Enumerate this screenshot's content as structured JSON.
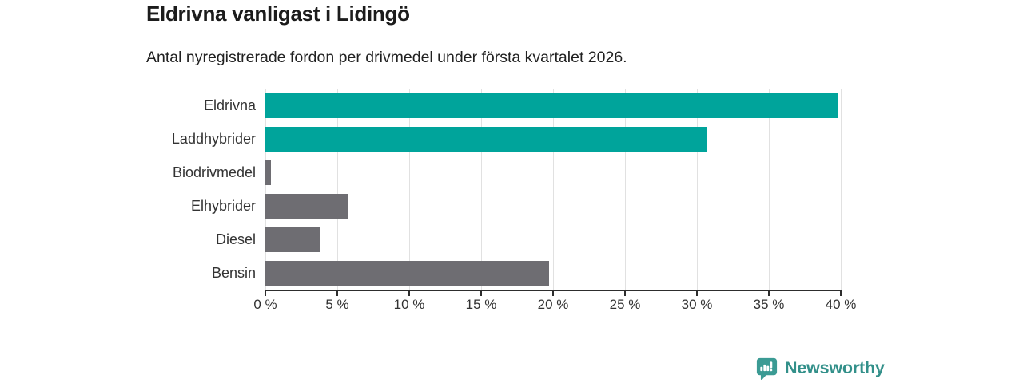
{
  "header": {
    "title": "Eldrivna vanligast i Lidingö",
    "subtitle": "Antal nyregistrerade fordon per drivmedel under första kvartalet 2026."
  },
  "chart_data": {
    "type": "bar",
    "orientation": "horizontal",
    "title": "Eldrivna vanligast i Lidingö",
    "subtitle": "Antal nyregistrerade fordon per drivmedel under första kvartalet 2026.",
    "categories": [
      "Eldrivna",
      "Laddhybrider",
      "Biodrivmedel",
      "Elhybrider",
      "Diesel",
      "Bensin"
    ],
    "values": [
      39.8,
      30.7,
      0.4,
      5.8,
      3.8,
      19.7
    ],
    "unit": "%",
    "bar_colors": [
      "#00a49b",
      "#00a49b",
      "#6e6d72",
      "#6e6d72",
      "#6e6d72",
      "#6e6d72"
    ],
    "xlabel": "",
    "ylabel": "",
    "xlim": [
      0,
      40
    ],
    "x_tick_step": 5,
    "x_tick_labels": [
      "0 %",
      "5 %",
      "10 %",
      "15 %",
      "20 %",
      "25 %",
      "30 %",
      "35 %",
      "40 %"
    ],
    "grid": true,
    "legend": false
  },
  "colors": {
    "accent_teal": "#00a49b",
    "neutral_gray": "#6e6d72",
    "axis": "#2d2d2d",
    "gridline": "#e1e1e1",
    "logo_teal": "#33908a"
  },
  "footer": {
    "brand": "Newsworthy"
  }
}
